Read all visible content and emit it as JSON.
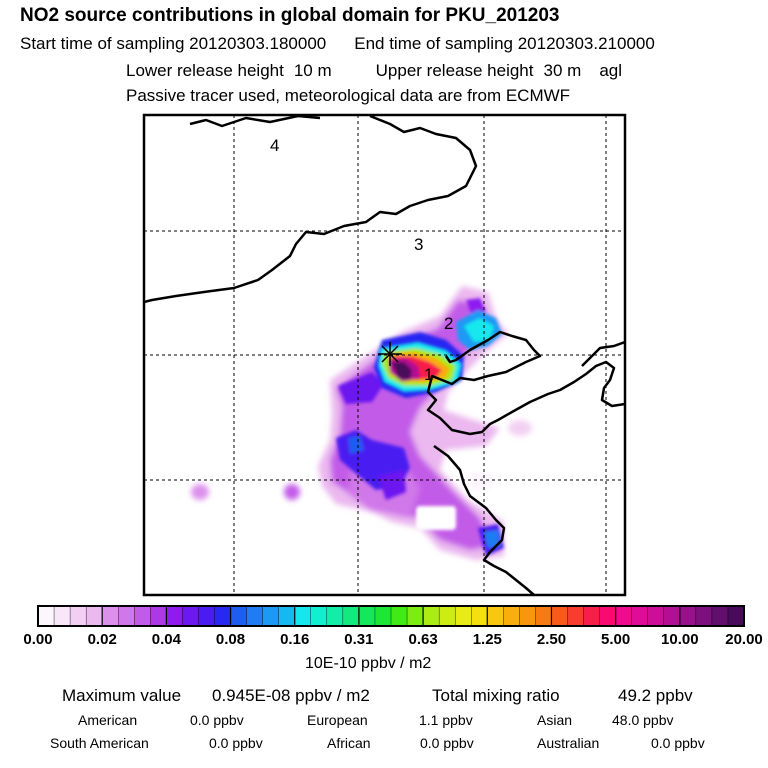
{
  "header": {
    "title": "NO2 source contributions in global domain for PKU_201203",
    "start_label": "Start time of sampling",
    "start_value": "20120303.180000",
    "end_label": "End time of sampling",
    "end_value": "20120303.210000",
    "lower_label": "Lower release height",
    "lower_value": "10",
    "lower_unit": "m",
    "upper_label": "Upper release height",
    "upper_value": "30",
    "upper_unit": "m",
    "agl": "agl",
    "note": "Passive tracer used, meteorological data are from ECMWF"
  },
  "map": {
    "region_labels": [
      "1",
      "2",
      "3",
      "4"
    ],
    "source_marker": "receptor-cross"
  },
  "colorbar": {
    "tick_labels": [
      "0.00",
      "0.02",
      "0.04",
      "0.08",
      "0.16",
      "0.31",
      "0.63",
      "1.25",
      "2.50",
      "5.00",
      "10.00",
      "20.00"
    ],
    "unit_label": "10E-10 ppbv / m2",
    "colors": [
      "#fdf6fd",
      "#f9e6f9",
      "#f3d0f3",
      "#ebb8ef",
      "#dc90ec",
      "#d077ea",
      "#c25ce8",
      "#ae38e8",
      "#8e1cf0",
      "#6c18f0",
      "#4a1cf2",
      "#2828f2",
      "#1e5cf2",
      "#1f7cf4",
      "#1a9af4",
      "#16b8f2",
      "#12e8ee",
      "#10f0d0",
      "#10eea8",
      "#12ea80",
      "#14e85a",
      "#1ce834",
      "#40ea16",
      "#7cec14",
      "#aaec14",
      "#ccec14",
      "#e8ec14",
      "#f4e010",
      "#f8c80e",
      "#f8ae0c",
      "#f8960c",
      "#f87a10",
      "#f85a1c",
      "#f83c2e",
      "#f81e4a",
      "#f80a72",
      "#f00a8e",
      "#e00c98",
      "#cc0e98",
      "#b40e94",
      "#98108a",
      "#7c107c",
      "#620e6c",
      "#4a0a5a"
    ]
  },
  "stats": {
    "max_label": "Maximum value",
    "max_value": "0.945E-08 ppbv / m2",
    "total_label": "Total mixing ratio",
    "total_value": "49.2 ppbv",
    "regions": [
      {
        "name": "American",
        "value": "0.0 ppbv"
      },
      {
        "name": "European",
        "value": "1.1 ppbv"
      },
      {
        "name": "Asian",
        "value": "48.0 ppbv"
      },
      {
        "name": "South American",
        "value": "0.0 ppbv"
      },
      {
        "name": "African",
        "value": "0.0 ppbv"
      },
      {
        "name": "Australian",
        "value": "0.0 ppbv"
      }
    ]
  }
}
